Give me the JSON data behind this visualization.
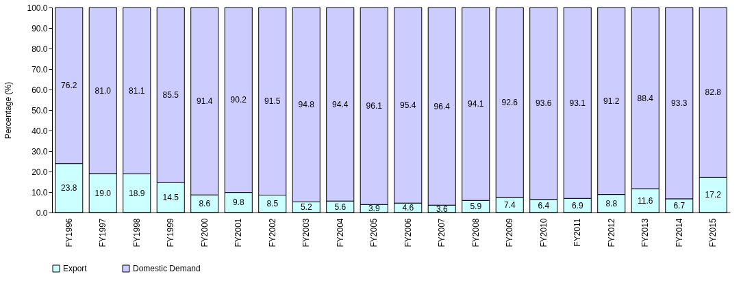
{
  "chart_data": {
    "type": "bar",
    "stacked": true,
    "ylabel": "Percentage (%)",
    "categories": [
      "FY1996",
      "FY1997",
      "FY1998",
      "FY1999",
      "FY2000",
      "FY2001",
      "FY2002",
      "FY2003",
      "FY2004",
      "FY2005",
      "FY2006",
      "FY2007",
      "FY2008",
      "FY2009",
      "FY2010",
      "FY2011",
      "FY2012",
      "FY2013",
      "FY2014",
      "FY2015"
    ],
    "series": [
      {
        "name": "Export",
        "color": "#ccffff",
        "values": [
          23.8,
          19.0,
          18.9,
          14.5,
          8.6,
          9.8,
          8.5,
          5.2,
          5.6,
          3.9,
          4.6,
          3.6,
          5.9,
          7.4,
          6.4,
          6.9,
          8.8,
          11.6,
          6.7,
          17.2
        ],
        "value_labels": [
          "23.8",
          "19.0",
          "18.9",
          "14.5",
          "8.6",
          "9.8",
          "8.5",
          "5.2",
          "5.6",
          "3.9",
          "4.6",
          "3.6",
          "5.9",
          "7.4",
          "6.4",
          "6.9",
          "8.8",
          "11.6",
          "6.7",
          "17.2"
        ]
      },
      {
        "name": "Domestic Demand",
        "color": "#ccccff",
        "values": [
          76.2,
          81.0,
          81.1,
          85.5,
          91.4,
          90.2,
          91.5,
          94.8,
          94.4,
          96.1,
          95.4,
          96.4,
          94.1,
          92.6,
          93.6,
          93.1,
          91.2,
          88.4,
          93.3,
          82.8
        ],
        "value_labels": [
          "76.2",
          "81.0",
          "81.1",
          "85.5",
          "91.4",
          "90.2",
          "91.5",
          "94.8",
          "94.4",
          "96.1",
          "95.4",
          "96.4",
          "94.1",
          "92.6",
          "93.6",
          "93.1",
          "91.2",
          "88.4",
          "93.3",
          "82.8"
        ]
      }
    ],
    "ylim": [
      0,
      100
    ],
    "yticks": [
      {
        "value": 0,
        "label": "0.0"
      },
      {
        "value": 10,
        "label": "10.0"
      },
      {
        "value": 20,
        "label": "20.0"
      },
      {
        "value": 30,
        "label": "30.0"
      },
      {
        "value": 40,
        "label": "40.0"
      },
      {
        "value": 50,
        "label": "50.0"
      },
      {
        "value": 60,
        "label": "60.0"
      },
      {
        "value": 70,
        "label": "70.0"
      },
      {
        "value": 80,
        "label": "80.0"
      },
      {
        "value": 90,
        "label": "90.0"
      },
      {
        "value": 100,
        "label": "100.0"
      }
    ],
    "grid": false,
    "legend": "bottom"
  }
}
